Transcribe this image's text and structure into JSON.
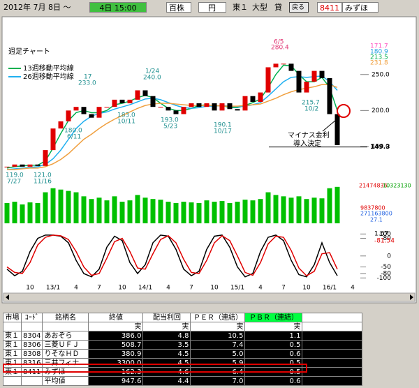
{
  "toolbar": {
    "date_range": "2012年 7月 8日 ～",
    "period": "4日 15:00",
    "unit": "百株",
    "currency": "円",
    "market": "東１",
    "size": "大型",
    "lending": "貸",
    "back": "戻る",
    "code": "8411",
    "name": "みずほ"
  },
  "chart_data": {
    "type": "candlestick",
    "title": "週足チャート",
    "categories": [
      null,
      null,
      null,
      "10",
      null,
      null,
      "13/1",
      null,
      null,
      "4",
      null,
      null,
      "7",
      null,
      null,
      "10",
      null,
      null,
      "14/1",
      null,
      null,
      "4",
      null,
      null,
      "7",
      null,
      null,
      "10",
      null,
      null,
      "15/1",
      null,
      null,
      "4",
      null,
      null,
      "7",
      null,
      null,
      "10",
      null,
      null,
      "16/1",
      null,
      null,
      "4"
    ],
    "close": [
      122,
      125,
      122,
      125,
      123,
      145,
      175,
      185,
      200,
      205,
      195,
      190,
      205,
      205,
      215,
      210,
      215,
      228,
      220,
      205,
      205,
      200,
      195,
      205,
      210,
      205,
      210,
      200,
      210,
      202,
      200,
      220,
      212,
      225,
      260,
      265,
      265,
      255,
      225,
      240,
      255,
      245,
      195,
      152,
      null,
      null
    ],
    "up_color": "#e00000",
    "down_color": "#000000",
    "series": [
      {
        "name": "13週移動平均線",
        "color": "#00b050",
        "values": [
          120,
          122,
          123,
          124,
          124,
          130,
          148,
          168,
          186,
          197,
          200,
          197,
          197,
          200,
          208,
          210,
          213,
          218,
          221,
          218,
          210,
          203,
          200,
          200,
          203,
          207,
          208,
          206,
          207,
          204,
          204,
          207,
          211,
          216,
          232,
          250,
          263,
          262,
          250,
          240,
          240,
          246,
          232,
          200,
          null,
          null
        ]
      },
      {
        "name": "26週移動平均線",
        "color": "#20b0f0",
        "values": [
          118,
          119,
          120,
          121,
          122,
          125,
          133,
          145,
          160,
          175,
          185,
          192,
          196,
          198,
          202,
          205,
          208,
          212,
          216,
          217,
          215,
          211,
          207,
          204,
          203,
          204,
          206,
          206,
          207,
          206,
          205,
          206,
          208,
          211,
          220,
          230,
          240,
          246,
          247,
          246,
          247,
          248,
          240,
          228,
          null,
          null
        ]
      },
      {
        "color": "#f0a040",
        "values": [
          118,
          118,
          119,
          120,
          120,
          122,
          126,
          132,
          140,
          150,
          160,
          167,
          175,
          182,
          188,
          193,
          198,
          203,
          207,
          209,
          210,
          210,
          209,
          208,
          207,
          207,
          207,
          207,
          206,
          206,
          206,
          207,
          208,
          209,
          213,
          217,
          222,
          226,
          229,
          231,
          233,
          236,
          236,
          232,
          null,
          null
        ]
      }
    ],
    "ylim": [
      117,
      305
    ],
    "yticks": [
      {
        "value": 150,
        "label": "150.0"
      },
      {
        "value": 200,
        "label": "200.0"
      },
      {
        "value": 250,
        "label": "250.0"
      }
    ],
    "last_price": 149.3,
    "current_values": [
      {
        "value": 171.7,
        "color": "#ff50c0"
      },
      {
        "value": 180.9,
        "color": "#20a0e0"
      },
      {
        "value": 213.5,
        "color": "#00b050"
      },
      {
        "value": 231.8,
        "color": "#f0a040"
      }
    ],
    "annotations": [
      {
        "price": "119.0",
        "date": "7/27"
      },
      {
        "price": "121.0",
        "date": "11/16"
      },
      {
        "date": "17",
        "price": "233.0"
      },
      {
        "price": "180.0",
        "date": "6/11"
      },
      {
        "date": "1/24",
        "price": "240.0"
      },
      {
        "price": "183.0",
        "date": "10/11"
      },
      {
        "price": "193.0",
        "date": "5/23"
      },
      {
        "price": "190.1",
        "date": "10/17"
      },
      {
        "date": "6/5",
        "price": "280.4"
      },
      {
        "price": "215.7",
        "date": "10/2"
      }
    ],
    "event": [
      "マイナス金利",
      "導入決定"
    ],
    "volume": {
      "color": "#00c000",
      "ylim": [
        0,
        300
      ],
      "values": [
        150,
        160,
        140,
        155,
        150,
        230,
        260,
        250,
        240,
        230,
        200,
        180,
        190,
        170,
        200,
        160,
        170,
        210,
        190,
        180,
        175,
        160,
        150,
        160,
        155,
        150,
        170,
        160,
        165,
        150,
        160,
        175,
        170,
        180,
        230,
        210,
        200,
        190,
        200,
        180,
        190,
        185,
        260,
        270,
        null,
        null
      ],
      "labels": [
        "21474836",
        "10323130",
        "9837800",
        "271163800",
        "27.1"
      ]
    },
    "oscillator": {
      "ylim": [
        -115,
        120
      ],
      "yticks": [
        100,
        80,
        0,
        -50,
        -80,
        -100
      ],
      "current": [
        {
          "value": 1.67,
          "color": "#000000"
        },
        {
          "value": -81.54,
          "color": "#e00000"
        }
      ],
      "series": [
        {
          "color": "#000000",
          "values": [
            -60,
            -90,
            -70,
            20,
            80,
            95,
            95,
            90,
            60,
            -20,
            -80,
            -95,
            -60,
            40,
            90,
            70,
            -30,
            -80,
            -40,
            60,
            95,
            90,
            30,
            -60,
            -90,
            -70,
            30,
            90,
            95,
            40,
            -50,
            -95,
            -80,
            20,
            85,
            95,
            70,
            -20,
            -85,
            -95,
            -40,
            60,
            -30,
            -90,
            null,
            null
          ]
        },
        {
          "color": "#e00000",
          "values": [
            -50,
            -75,
            -80,
            -30,
            50,
            85,
            95,
            92,
            75,
            20,
            -50,
            -88,
            -80,
            -10,
            65,
            80,
            20,
            -55,
            -60,
            10,
            75,
            92,
            60,
            -15,
            -75,
            -80,
            -20,
            60,
            92,
            70,
            0,
            -75,
            -88,
            -30,
            55,
            90,
            85,
            25,
            -55,
            -90,
            -70,
            10,
            15,
            -60,
            null,
            null
          ]
        }
      ]
    }
  },
  "table": {
    "header": [
      "市場",
      "ｺｰﾄﾞ",
      "銘柄名",
      "終値",
      "配当利回",
      "ＰＥＲ（連結）",
      "ＰＢＲ（連結）"
    ],
    "units": [
      "実",
      "実",
      "実",
      "実"
    ],
    "rows": [
      [
        "東１",
        "8304",
        "あおぞら",
        "386.0",
        "4.8",
        "10.5",
        "1.1"
      ],
      [
        "東１",
        "8306",
        "三菱ＵＦＪ",
        "508.7",
        "3.5",
        "7.4",
        "0.5"
      ],
      [
        "東１",
        "8308",
        "りそなＨＤ",
        "380.9",
        "4.5",
        "5.0",
        "0.6"
      ],
      [
        "東１",
        "8316",
        "三井フィナ",
        "3300.0",
        "4.5",
        "5.9",
        "0.5"
      ],
      [
        "東１",
        "8411",
        "みずほ",
        "162.3",
        "4.6",
        "6.4",
        "0.5"
      ]
    ],
    "average": {
      "label": "平均値",
      "values": [
        "947.6",
        "4.4",
        "7.0",
        "0.6"
      ]
    }
  }
}
